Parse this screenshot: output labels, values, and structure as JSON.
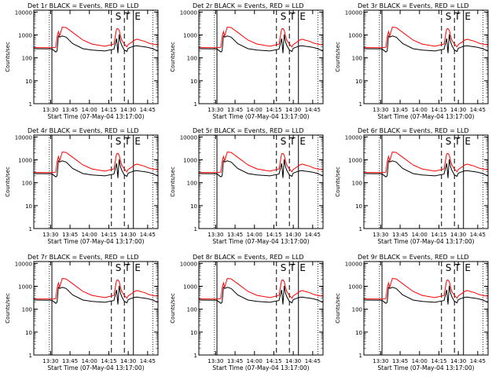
{
  "figure": {
    "xlabel": "Start Time (07-May-04 13:17:00)",
    "ylabel": "Counts/sec",
    "overlay_letters": [
      "S",
      "T",
      "E"
    ]
  },
  "colors": {
    "events": "#000000",
    "lld": "#ff0000",
    "axis": "#000000"
  },
  "shared_axes": {
    "xrange_minutes": [
      0,
      96
    ],
    "x_ticks": [
      {
        "min": 13,
        "label": "13:30"
      },
      {
        "min": 28,
        "label": "13:45"
      },
      {
        "min": 43,
        "label": "14:00"
      },
      {
        "min": 58,
        "label": "14:15"
      },
      {
        "min": 73,
        "label": "14:30"
      },
      {
        "min": 88,
        "label": "14:45"
      }
    ],
    "ylim": [
      1,
      12000
    ],
    "yscale": "log",
    "y_ticks": [
      {
        "v": 1,
        "label": "1"
      },
      {
        "v": 10,
        "label": "10"
      },
      {
        "v": 100,
        "label": "100"
      },
      {
        "v": 1000,
        "label": "1000"
      },
      {
        "v": 10000,
        "label": "10000"
      }
    ]
  },
  "chart_data": [
    {
      "type": "line",
      "title": "Det 1r BLACK = Events, RED = LLD",
      "xlabel": "Start Time (07-May-04 13:17:00)",
      "ylabel": "Counts/sec",
      "x": [
        0,
        14,
        17,
        18,
        19,
        20,
        22,
        25,
        30,
        38,
        45,
        55,
        62,
        64,
        65,
        66,
        67,
        68,
        70,
        72,
        73,
        75,
        78,
        80,
        82,
        84,
        86,
        88,
        90,
        92,
        94,
        96
      ],
      "series": [
        {
          "name": "Events",
          "values": [
            250,
            245,
            180,
            200,
            900,
            800,
            900,
            800,
            420,
            250,
            220,
            200,
            240,
            700,
            160,
            1050,
            500,
            350,
            220,
            190,
            260,
            290,
            330,
            340,
            320,
            310,
            300,
            290,
            270,
            250,
            220,
            210
          ]
        },
        {
          "name": "LLD",
          "values": [
            280,
            275,
            290,
            800,
            1400,
            900,
            2200,
            2100,
            1300,
            600,
            400,
            320,
            400,
            1800,
            1900,
            1600,
            900,
            600,
            400,
            300,
            380,
            450,
            600,
            650,
            600,
            560,
            520,
            460,
            420,
            400,
            380,
            370
          ]
        }
      ]
    },
    {
      "type": "line",
      "title": "Det 2r BLACK = Events, RED = LLD",
      "xlabel": "Start Time (07-May-04 13:17:00)",
      "ylabel": "Counts/sec",
      "x": [
        0,
        14,
        17,
        18,
        19,
        20,
        22,
        25,
        30,
        38,
        45,
        55,
        62,
        64,
        65,
        66,
        67,
        68,
        70,
        72,
        73,
        75,
        78,
        80,
        82,
        84,
        86,
        88,
        90,
        92,
        94,
        96
      ],
      "series": [
        {
          "name": "Events",
          "values": [
            250,
            245,
            180,
            200,
            900,
            800,
            900,
            800,
            420,
            250,
            220,
            200,
            240,
            700,
            160,
            1050,
            500,
            350,
            220,
            190,
            260,
            290,
            330,
            340,
            320,
            310,
            300,
            290,
            270,
            250,
            220,
            210
          ]
        },
        {
          "name": "LLD",
          "values": [
            280,
            275,
            290,
            800,
            1400,
            900,
            2200,
            2100,
            1300,
            600,
            400,
            320,
            400,
            1800,
            1900,
            1600,
            900,
            600,
            400,
            300,
            380,
            450,
            600,
            650,
            600,
            560,
            520,
            460,
            420,
            400,
            380,
            370
          ]
        }
      ]
    },
    {
      "type": "line",
      "title": "Det 3r BLACK = Events, RED = LLD",
      "xlabel": "Start Time (07-May-04 13:17:00)",
      "ylabel": "Counts/sec",
      "x": [
        0,
        14,
        17,
        18,
        19,
        20,
        22,
        25,
        30,
        38,
        45,
        55,
        62,
        64,
        65,
        66,
        67,
        68,
        70,
        72,
        73,
        75,
        78,
        80,
        82,
        84,
        86,
        88,
        90,
        92,
        94,
        96
      ],
      "series": [
        {
          "name": "Events",
          "values": [
            250,
            245,
            180,
            200,
            900,
            800,
            900,
            800,
            420,
            250,
            220,
            200,
            240,
            700,
            160,
            1050,
            500,
            350,
            220,
            190,
            260,
            290,
            330,
            340,
            320,
            310,
            300,
            290,
            270,
            250,
            220,
            210
          ]
        },
        {
          "name": "LLD",
          "values": [
            280,
            275,
            290,
            800,
            1400,
            900,
            2200,
            2100,
            1300,
            600,
            400,
            320,
            400,
            1800,
            1900,
            1600,
            900,
            600,
            400,
            300,
            380,
            450,
            600,
            650,
            600,
            560,
            520,
            460,
            420,
            400,
            380,
            370
          ]
        }
      ]
    },
    {
      "type": "line",
      "title": "Det 4r BLACK = Events, RED = LLD",
      "xlabel": "Start Time (07-May-04 13:17:00)",
      "ylabel": "Counts/sec",
      "x": [
        0,
        14,
        17,
        18,
        19,
        20,
        22,
        25,
        30,
        38,
        45,
        55,
        62,
        64,
        65,
        66,
        67,
        68,
        70,
        72,
        73,
        75,
        78,
        80,
        82,
        84,
        86,
        88,
        90,
        92,
        94,
        96
      ],
      "series": [
        {
          "name": "Events",
          "values": [
            250,
            245,
            180,
            200,
            900,
            800,
            900,
            800,
            420,
            250,
            220,
            200,
            240,
            700,
            160,
            1050,
            500,
            350,
            220,
            190,
            260,
            290,
            330,
            340,
            320,
            310,
            300,
            290,
            270,
            250,
            220,
            210
          ]
        },
        {
          "name": "LLD",
          "values": [
            280,
            275,
            290,
            800,
            1400,
            900,
            2200,
            2100,
            1300,
            600,
            400,
            320,
            400,
            1800,
            1900,
            1600,
            900,
            600,
            400,
            300,
            380,
            450,
            600,
            650,
            600,
            560,
            520,
            460,
            420,
            400,
            380,
            370
          ]
        }
      ]
    },
    {
      "type": "line",
      "title": "Det 5r BLACK = Events, RED = LLD",
      "xlabel": "Start Time (07-May-04 13:17:00)",
      "ylabel": "Counts/sec",
      "x": [
        0,
        14,
        17,
        18,
        19,
        20,
        22,
        25,
        30,
        38,
        45,
        55,
        62,
        64,
        65,
        66,
        67,
        68,
        70,
        72,
        73,
        75,
        78,
        80,
        82,
        84,
        86,
        88,
        90,
        92,
        94,
        96
      ],
      "series": [
        {
          "name": "Events",
          "values": [
            250,
            245,
            180,
            200,
            900,
            800,
            900,
            800,
            420,
            250,
            220,
            200,
            240,
            700,
            160,
            1050,
            500,
            350,
            220,
            190,
            260,
            290,
            330,
            340,
            320,
            310,
            300,
            290,
            270,
            250,
            220,
            210
          ]
        },
        {
          "name": "LLD",
          "values": [
            280,
            275,
            290,
            800,
            1400,
            900,
            2200,
            2100,
            1300,
            600,
            400,
            320,
            400,
            1800,
            1900,
            1600,
            900,
            600,
            400,
            300,
            380,
            450,
            600,
            650,
            600,
            560,
            520,
            460,
            420,
            400,
            380,
            370
          ]
        }
      ]
    },
    {
      "type": "line",
      "title": "Det 6r BLACK = Events, RED = LLD",
      "xlabel": "Start Time (07-May-04 13:17:00)",
      "ylabel": "Counts/sec",
      "x": [
        0,
        14,
        17,
        18,
        19,
        20,
        22,
        25,
        30,
        38,
        45,
        55,
        62,
        64,
        65,
        66,
        67,
        68,
        70,
        72,
        73,
        75,
        78,
        80,
        82,
        84,
        86,
        88,
        90,
        92,
        94,
        96
      ],
      "series": [
        {
          "name": "Events",
          "values": [
            250,
            245,
            180,
            200,
            900,
            800,
            900,
            800,
            420,
            250,
            220,
            200,
            240,
            700,
            160,
            1050,
            500,
            350,
            220,
            190,
            260,
            290,
            330,
            340,
            320,
            310,
            300,
            290,
            270,
            250,
            220,
            210
          ]
        },
        {
          "name": "LLD",
          "values": [
            280,
            275,
            290,
            800,
            1400,
            900,
            2200,
            2100,
            1300,
            600,
            400,
            320,
            400,
            1800,
            1900,
            1600,
            900,
            600,
            400,
            300,
            380,
            450,
            600,
            650,
            600,
            560,
            520,
            460,
            420,
            400,
            380,
            370
          ]
        }
      ]
    },
    {
      "type": "line",
      "title": "Det 7r BLACK = Events, RED = LLD",
      "xlabel": "Start Time (07-May-04 13:17:00)",
      "ylabel": "Counts/sec",
      "x": [
        0,
        14,
        17,
        18,
        19,
        20,
        22,
        25,
        30,
        38,
        45,
        55,
        62,
        64,
        65,
        66,
        67,
        68,
        70,
        72,
        73,
        75,
        78,
        80,
        82,
        84,
        86,
        88,
        90,
        92,
        94,
        96
      ],
      "series": [
        {
          "name": "Events",
          "values": [
            250,
            245,
            180,
            200,
            900,
            800,
            900,
            800,
            420,
            250,
            220,
            200,
            240,
            700,
            160,
            1050,
            500,
            350,
            220,
            190,
            260,
            290,
            330,
            340,
            320,
            310,
            300,
            290,
            270,
            250,
            220,
            210
          ]
        },
        {
          "name": "LLD",
          "values": [
            280,
            275,
            290,
            800,
            1400,
            900,
            2200,
            2100,
            1300,
            600,
            400,
            320,
            400,
            1800,
            1900,
            1600,
            900,
            600,
            400,
            300,
            380,
            450,
            600,
            650,
            600,
            560,
            520,
            460,
            420,
            400,
            380,
            370
          ]
        }
      ]
    },
    {
      "type": "line",
      "title": "Det 8r BLACK = Events, RED = LLD",
      "xlabel": "Start Time (07-May-04 13:17:00)",
      "ylabel": "Counts/sec",
      "x": [
        0,
        14,
        17,
        18,
        19,
        20,
        22,
        25,
        30,
        38,
        45,
        55,
        62,
        64,
        65,
        66,
        67,
        68,
        70,
        72,
        73,
        75,
        78,
        80,
        82,
        84,
        86,
        88,
        90,
        92,
        94,
        96
      ],
      "series": [
        {
          "name": "Events",
          "values": [
            250,
            245,
            180,
            200,
            900,
            800,
            900,
            800,
            420,
            250,
            220,
            200,
            240,
            700,
            160,
            1050,
            500,
            350,
            220,
            190,
            260,
            290,
            330,
            340,
            320,
            310,
            300,
            290,
            270,
            250,
            220,
            210
          ]
        },
        {
          "name": "LLD",
          "values": [
            280,
            275,
            290,
            800,
            1400,
            900,
            2200,
            2100,
            1300,
            600,
            400,
            320,
            400,
            1800,
            1900,
            1600,
            900,
            600,
            400,
            300,
            380,
            450,
            600,
            650,
            600,
            560,
            520,
            460,
            420,
            400,
            380,
            370
          ]
        }
      ]
    },
    {
      "type": "line",
      "title": "Det 9r BLACK = Events, RED = LLD",
      "xlabel": "Start Time (07-May-04 13:17:00)",
      "ylabel": "Counts/sec",
      "x": [
        0,
        14,
        17,
        18,
        19,
        20,
        22,
        25,
        30,
        38,
        45,
        55,
        62,
        64,
        65,
        66,
        67,
        68,
        70,
        72,
        73,
        75,
        78,
        80,
        82,
        84,
        86,
        88,
        90,
        92,
        94,
        96
      ],
      "series": [
        {
          "name": "Events",
          "values": [
            250,
            245,
            180,
            200,
            900,
            800,
            900,
            800,
            420,
            250,
            220,
            200,
            240,
            700,
            160,
            1050,
            500,
            350,
            220,
            190,
            260,
            290,
            330,
            340,
            320,
            310,
            300,
            290,
            270,
            250,
            220,
            210
          ]
        },
        {
          "name": "LLD",
          "values": [
            280,
            275,
            290,
            800,
            1400,
            900,
            2200,
            2100,
            1300,
            600,
            400,
            320,
            400,
            1800,
            1900,
            1600,
            900,
            600,
            400,
            300,
            380,
            450,
            600,
            650,
            600,
            560,
            520,
            460,
            420,
            400,
            380,
            370
          ]
        }
      ]
    }
  ]
}
